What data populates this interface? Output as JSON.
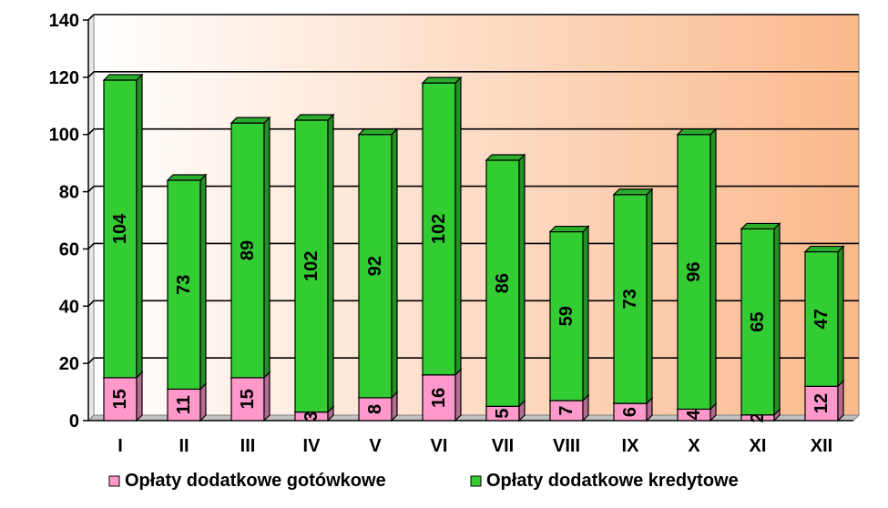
{
  "chart_data": {
    "type": "bar",
    "stacked": true,
    "categories": [
      "I",
      "II",
      "III",
      "IV",
      "V",
      "VI",
      "VII",
      "VIII",
      "IX",
      "X",
      "XI",
      "XII"
    ],
    "series": [
      {
        "name": "Opłaty dodatkowe gotówkowe",
        "color": "#ff99cc",
        "values": [
          15,
          11,
          15,
          3,
          8,
          16,
          5,
          7,
          6,
          4,
          2,
          12
        ]
      },
      {
        "name": "Opłaty dodatkowe kredytowe",
        "color": "#33cc33",
        "values": [
          104,
          73,
          89,
          102,
          92,
          102,
          86,
          59,
          73,
          96,
          65,
          47
        ]
      }
    ],
    "ylim": [
      0,
      140
    ],
    "yticks": [
      0,
      20,
      40,
      60,
      80,
      100,
      120,
      140
    ],
    "grid": true,
    "legend": "bottom",
    "data_labels": true,
    "background_gradient": [
      "#ffffff",
      "#fbb98c"
    ]
  }
}
